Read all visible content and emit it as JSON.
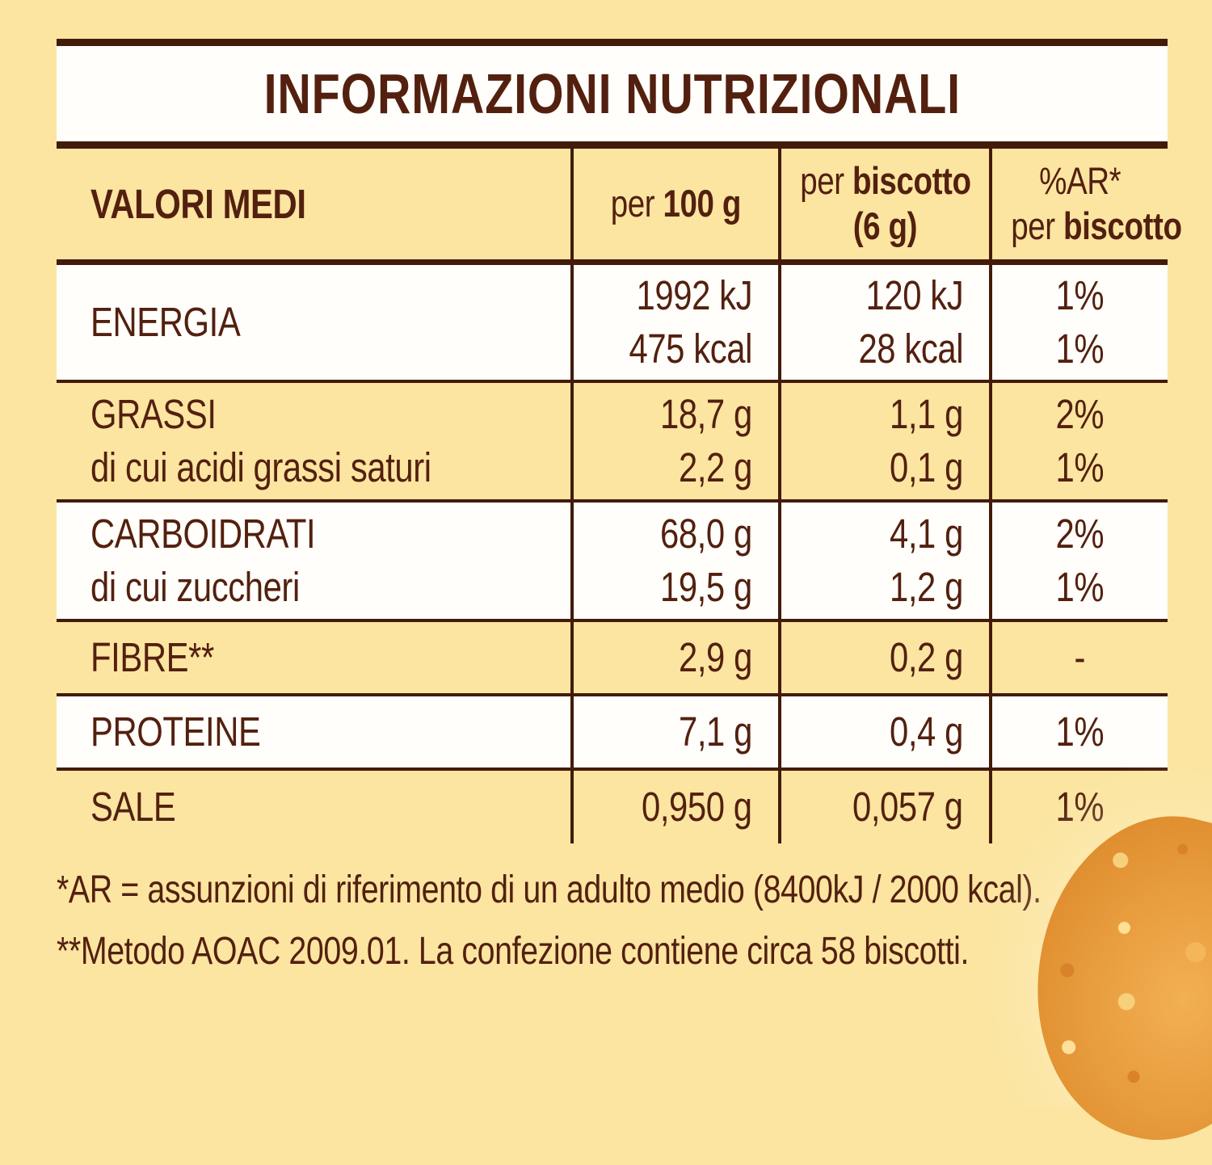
{
  "title": "INFORMAZIONI NUTRIZIONALI",
  "table": {
    "header": {
      "col1": "VALORI MEDI",
      "col2_prefix": "per ",
      "col2_bold": "100 g",
      "col3_line1_prefix": "per ",
      "col3_line1_bold": "biscotto",
      "col3_line2": "(6 g)",
      "col4_line1": "%AR*",
      "col4_line2_prefix": "per ",
      "col4_line2_bold": "biscotto"
    },
    "rows": [
      {
        "id": "energia",
        "label_lines": [
          "ENERGIA"
        ],
        "per_100g": [
          "1992 kJ",
          "475 kcal"
        ],
        "per_biscotto": [
          "120 kJ",
          "28 kcal"
        ],
        "ar_percent": [
          "1%",
          "1%"
        ],
        "bg": "white"
      },
      {
        "id": "grassi",
        "label_lines": [
          "GRASSI",
          "di cui acidi grassi saturi"
        ],
        "per_100g": [
          "18,7 g",
          "2,2 g"
        ],
        "per_biscotto": [
          "1,1 g",
          "0,1 g"
        ],
        "ar_percent": [
          "2%",
          "1%"
        ],
        "bg": "yellow"
      },
      {
        "id": "carboidrati",
        "label_lines": [
          "CARBOIDRATI",
          "di cui zuccheri"
        ],
        "per_100g": [
          "68,0 g",
          "19,5 g"
        ],
        "per_biscotto": [
          "4,1 g",
          "1,2 g"
        ],
        "ar_percent": [
          "2%",
          "1%"
        ],
        "bg": "white"
      },
      {
        "id": "fibre",
        "label_lines": [
          "FIBRE**"
        ],
        "per_100g": [
          "2,9 g"
        ],
        "per_biscotto": [
          "0,2 g"
        ],
        "ar_percent": [
          "-"
        ],
        "bg": "yellow"
      },
      {
        "id": "proteine",
        "label_lines": [
          "PROTEINE"
        ],
        "per_100g": [
          "7,1 g"
        ],
        "per_biscotto": [
          "0,4 g"
        ],
        "ar_percent": [
          "1%"
        ],
        "bg": "white"
      },
      {
        "id": "sale",
        "label_lines": [
          "SALE"
        ],
        "per_100g": [
          "0,950 g"
        ],
        "per_biscotto": [
          "0,057 g"
        ],
        "ar_percent": [
          "1%"
        ],
        "bg": "yellow"
      }
    ]
  },
  "footnotes": [
    "*AR = assunzioni di riferimento di un adulto medio (8400kJ / 2000 kcal).",
    "**Metodo AOAC 2009.01. La confezione contiene circa 58 biscotti."
  ],
  "colors": {
    "background": "#FBE5A1",
    "panel_white": "#FFFEFA",
    "text_brown": "#53200F",
    "line_brown": "#431B0B",
    "biscuit_orange": "#E89B36"
  }
}
